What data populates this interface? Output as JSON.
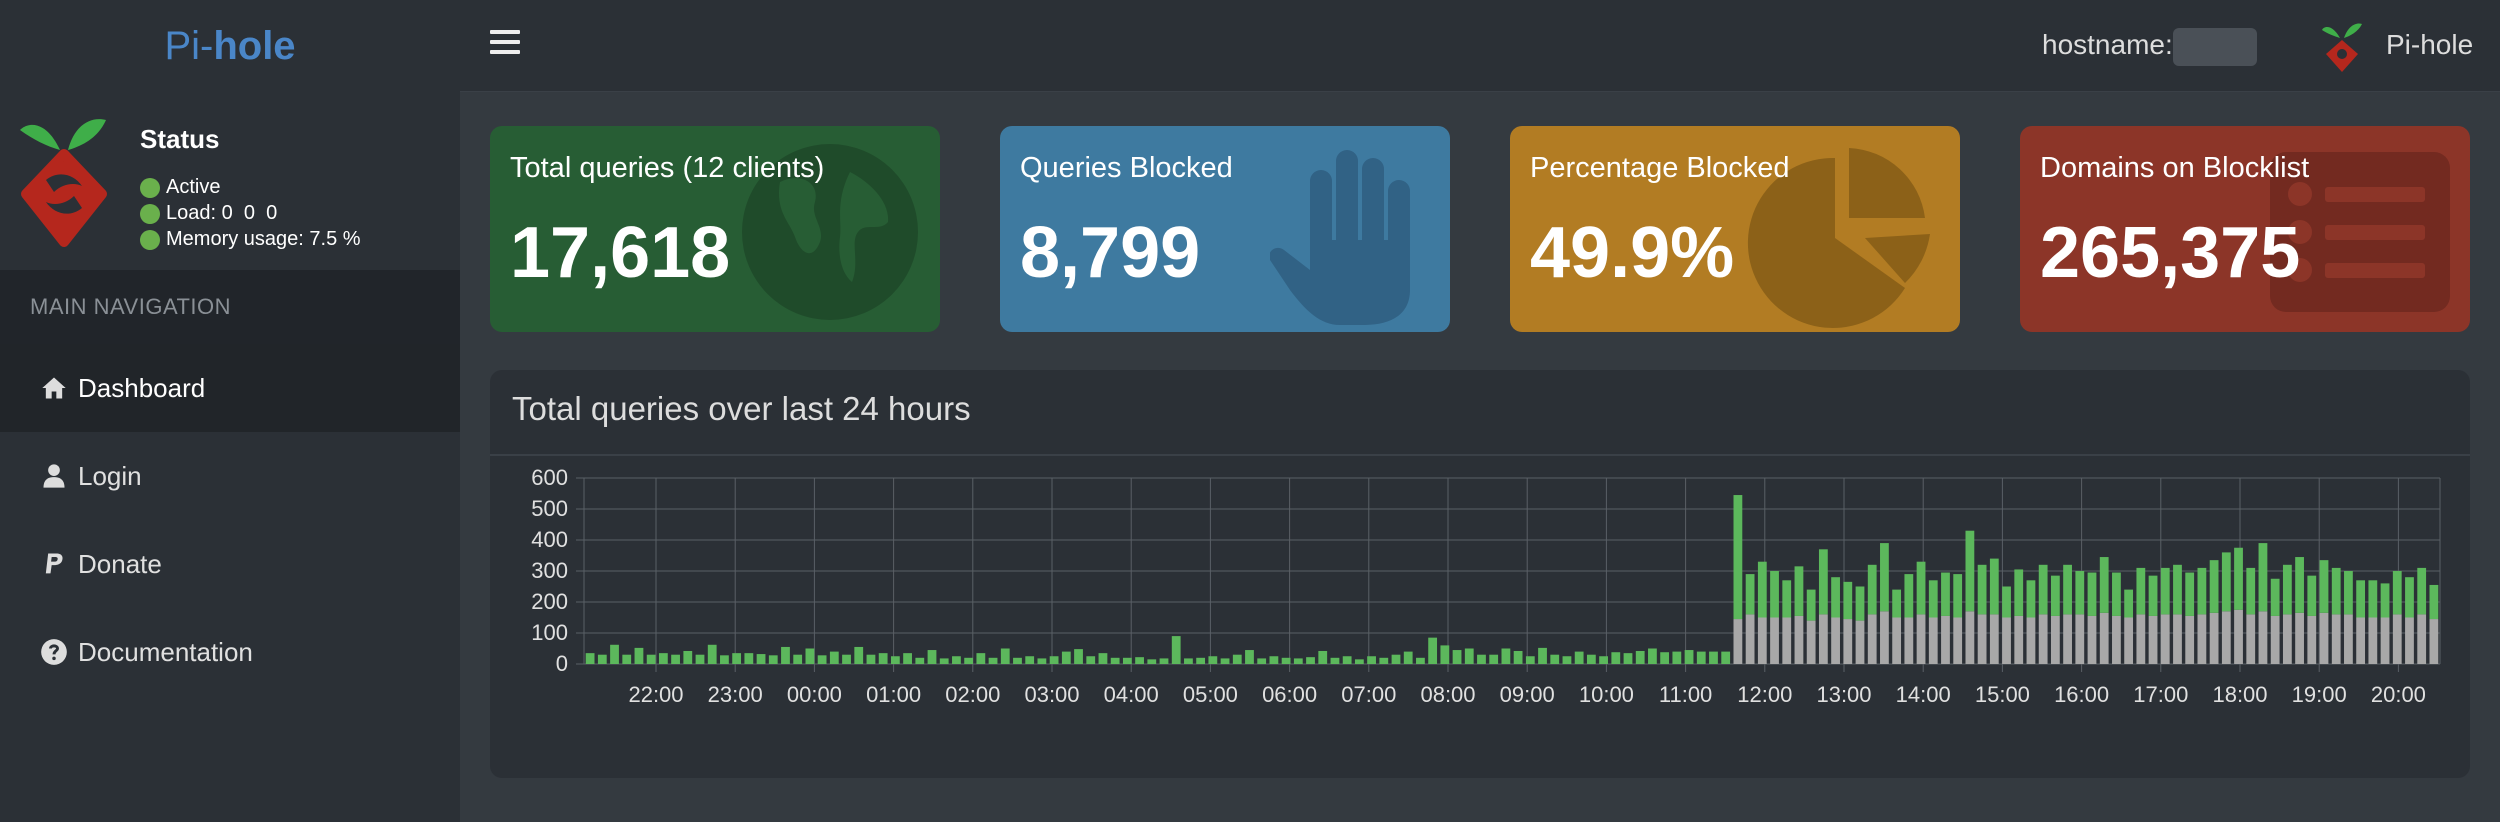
{
  "brand": {
    "prefix": "Pi-",
    "suffix": "hole"
  },
  "topbar": {
    "hostname_label": "hostname:",
    "user_name": "Pi-hole"
  },
  "status": {
    "title": "Status",
    "active": "Active",
    "load_label": "Load:",
    "load_values": "0  0  0",
    "memory_label": "Memory usage:",
    "memory_value": "7.5 %"
  },
  "nav": {
    "header": "MAIN NAVIGATION",
    "items": [
      {
        "label": "Dashboard",
        "icon": "home-icon"
      },
      {
        "label": "Login",
        "icon": "user-icon"
      },
      {
        "label": "Donate",
        "icon": "paypal-icon"
      },
      {
        "label": "Documentation",
        "icon": "question-circle-icon"
      }
    ]
  },
  "boxes": [
    {
      "label": "Total queries (12 clients)",
      "value": "17,618",
      "color": "#275d34",
      "icon": "globe-icon"
    },
    {
      "label": "Queries Blocked",
      "value": "8,799",
      "color": "#3e7aa0",
      "icon": "hand-icon"
    },
    {
      "label": "Percentage Blocked",
      "value": "49.9%",
      "color": "#b27c23",
      "icon": "pie-chart-icon"
    },
    {
      "label": "Domains on Blocklist",
      "value": "265,375",
      "color": "#8c3528",
      "icon": "list-icon"
    }
  ],
  "chart_data": {
    "type": "bar",
    "title": "Total queries over last 24 hours",
    "stacked": true,
    "ylim": [
      0,
      600
    ],
    "yticks": [
      0,
      100,
      200,
      300,
      400,
      500,
      600
    ],
    "xticks": [
      "22:00",
      "23:00",
      "00:00",
      "01:00",
      "02:00",
      "03:00",
      "04:00",
      "05:00",
      "06:00",
      "07:00",
      "08:00",
      "09:00",
      "10:00",
      "11:00",
      "12:00",
      "13:00",
      "14:00",
      "15:00",
      "16:00",
      "17:00",
      "18:00",
      "19:00",
      "20:00"
    ],
    "grid": true,
    "colors": {
      "permitted": "#5cb85c",
      "blocked": "#a8a8a8"
    },
    "series": [
      {
        "values": [
          35,
          30,
          62,
          30,
          52,
          30,
          35,
          30,
          42,
          30,
          62,
          28,
          35,
          35,
          32,
          28,
          55,
          30,
          50,
          28,
          40,
          30,
          55,
          30,
          35,
          25,
          35,
          20,
          45,
          18,
          25,
          20,
          35,
          20,
          50,
          20,
          25,
          18,
          25,
          40,
          48,
          25,
          35,
          20,
          20,
          22,
          15,
          18,
          90,
          18,
          20,
          25,
          18,
          30,
          45,
          18,
          25,
          20,
          18,
          22,
          42,
          20,
          25,
          15,
          25,
          20,
          30,
          40,
          20,
          85,
          60,
          45,
          50,
          30,
          30,
          50,
          42,
          25,
          52,
          30,
          25,
          40,
          30,
          25,
          38,
          35,
          42,
          50,
          38,
          40,
          45,
          40,
          40,
          40,
          400,
          130,
          180,
          150,
          120,
          160,
          100,
          210,
          130,
          120,
          110,
          160,
          220,
          90,
          140,
          170,
          120,
          140,
          140,
          260,
          160,
          180,
          100,
          150,
          120,
          160,
          130,
          160,
          140,
          140,
          180,
          140,
          90,
          150,
          130,
          150,
          160,
          140,
          150,
          170,
          190,
          200,
          150,
          220,
          120,
          160,
          180,
          130,
          170,
          150,
          140,
          120,
          120,
          110,
          140,
          130,
          150,
          110
        ],
        "name": ""
      },
      {
        "values": [
          0,
          0,
          0,
          0,
          0,
          0,
          0,
          0,
          0,
          0,
          0,
          0,
          0,
          0,
          0,
          0,
          0,
          0,
          0,
          0,
          0,
          0,
          0,
          0,
          0,
          0,
          0,
          0,
          0,
          0,
          0,
          0,
          0,
          0,
          0,
          0,
          0,
          0,
          0,
          0,
          0,
          0,
          0,
          0,
          0,
          0,
          0,
          0,
          0,
          0,
          0,
          0,
          0,
          0,
          0,
          0,
          0,
          0,
          0,
          0,
          0,
          0,
          0,
          0,
          0,
          0,
          0,
          0,
          0,
          0,
          0,
          0,
          0,
          0,
          0,
          0,
          0,
          0,
          0,
          0,
          0,
          0,
          0,
          0,
          0,
          0,
          0,
          0,
          0,
          0,
          0,
          0,
          0,
          0,
          145,
          160,
          150,
          150,
          150,
          155,
          140,
          160,
          150,
          145,
          140,
          160,
          170,
          150,
          150,
          160,
          150,
          155,
          150,
          170,
          160,
          160,
          150,
          155,
          150,
          160,
          155,
          160,
          160,
          155,
          165,
          155,
          150,
          160,
          155,
          160,
          160,
          155,
          160,
          165,
          170,
          175,
          160,
          170,
          155,
          160,
          165,
          155,
          165,
          160,
          160,
          150,
          150,
          150,
          160,
          150,
          160,
          145
        ],
        "name": ""
      }
    ]
  }
}
